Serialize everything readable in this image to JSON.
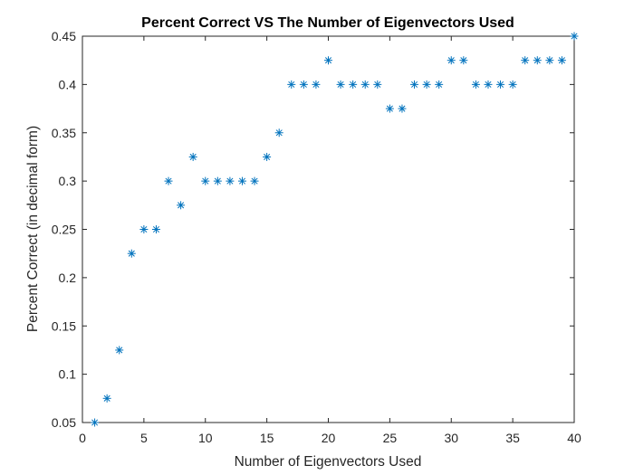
{
  "chart_data": {
    "type": "scatter",
    "title": "Percent Correct VS The Number of Eigenvectors Used",
    "xlabel": "Number of Eigenvectors Used",
    "ylabel": "Percent Correct (in decimal form)",
    "xlim": [
      0,
      40
    ],
    "ylim": [
      0.05,
      0.45
    ],
    "xticks": [
      "0",
      "5",
      "10",
      "15",
      "20",
      "25",
      "30",
      "35",
      "40"
    ],
    "yticks": [
      "0.05",
      "0.1",
      "0.15",
      "0.2",
      "0.25",
      "0.3",
      "0.35",
      "0.4",
      "0.45"
    ],
    "grid": false,
    "marker": "asterisk",
    "marker_color": "#0072BD",
    "series": [
      {
        "x": [
          1,
          2,
          3,
          4,
          5,
          6,
          7,
          8,
          9,
          10,
          11,
          12,
          13,
          14,
          15,
          16,
          17,
          18,
          19,
          20,
          21,
          22,
          23,
          24,
          25,
          26,
          27,
          28,
          29,
          30,
          31,
          32,
          33,
          34,
          35,
          36,
          37,
          38,
          39,
          40
        ],
        "y": [
          0.05,
          0.075,
          0.125,
          0.225,
          0.25,
          0.25,
          0.3,
          0.275,
          0.325,
          0.3,
          0.3,
          0.3,
          0.3,
          0.3,
          0.325,
          0.35,
          0.4,
          0.4,
          0.4,
          0.425,
          0.4,
          0.4,
          0.4,
          0.4,
          0.375,
          0.375,
          0.4,
          0.4,
          0.4,
          0.425,
          0.425,
          0.4,
          0.4,
          0.4,
          0.4,
          0.425,
          0.425,
          0.425,
          0.425,
          0.45
        ]
      }
    ]
  }
}
